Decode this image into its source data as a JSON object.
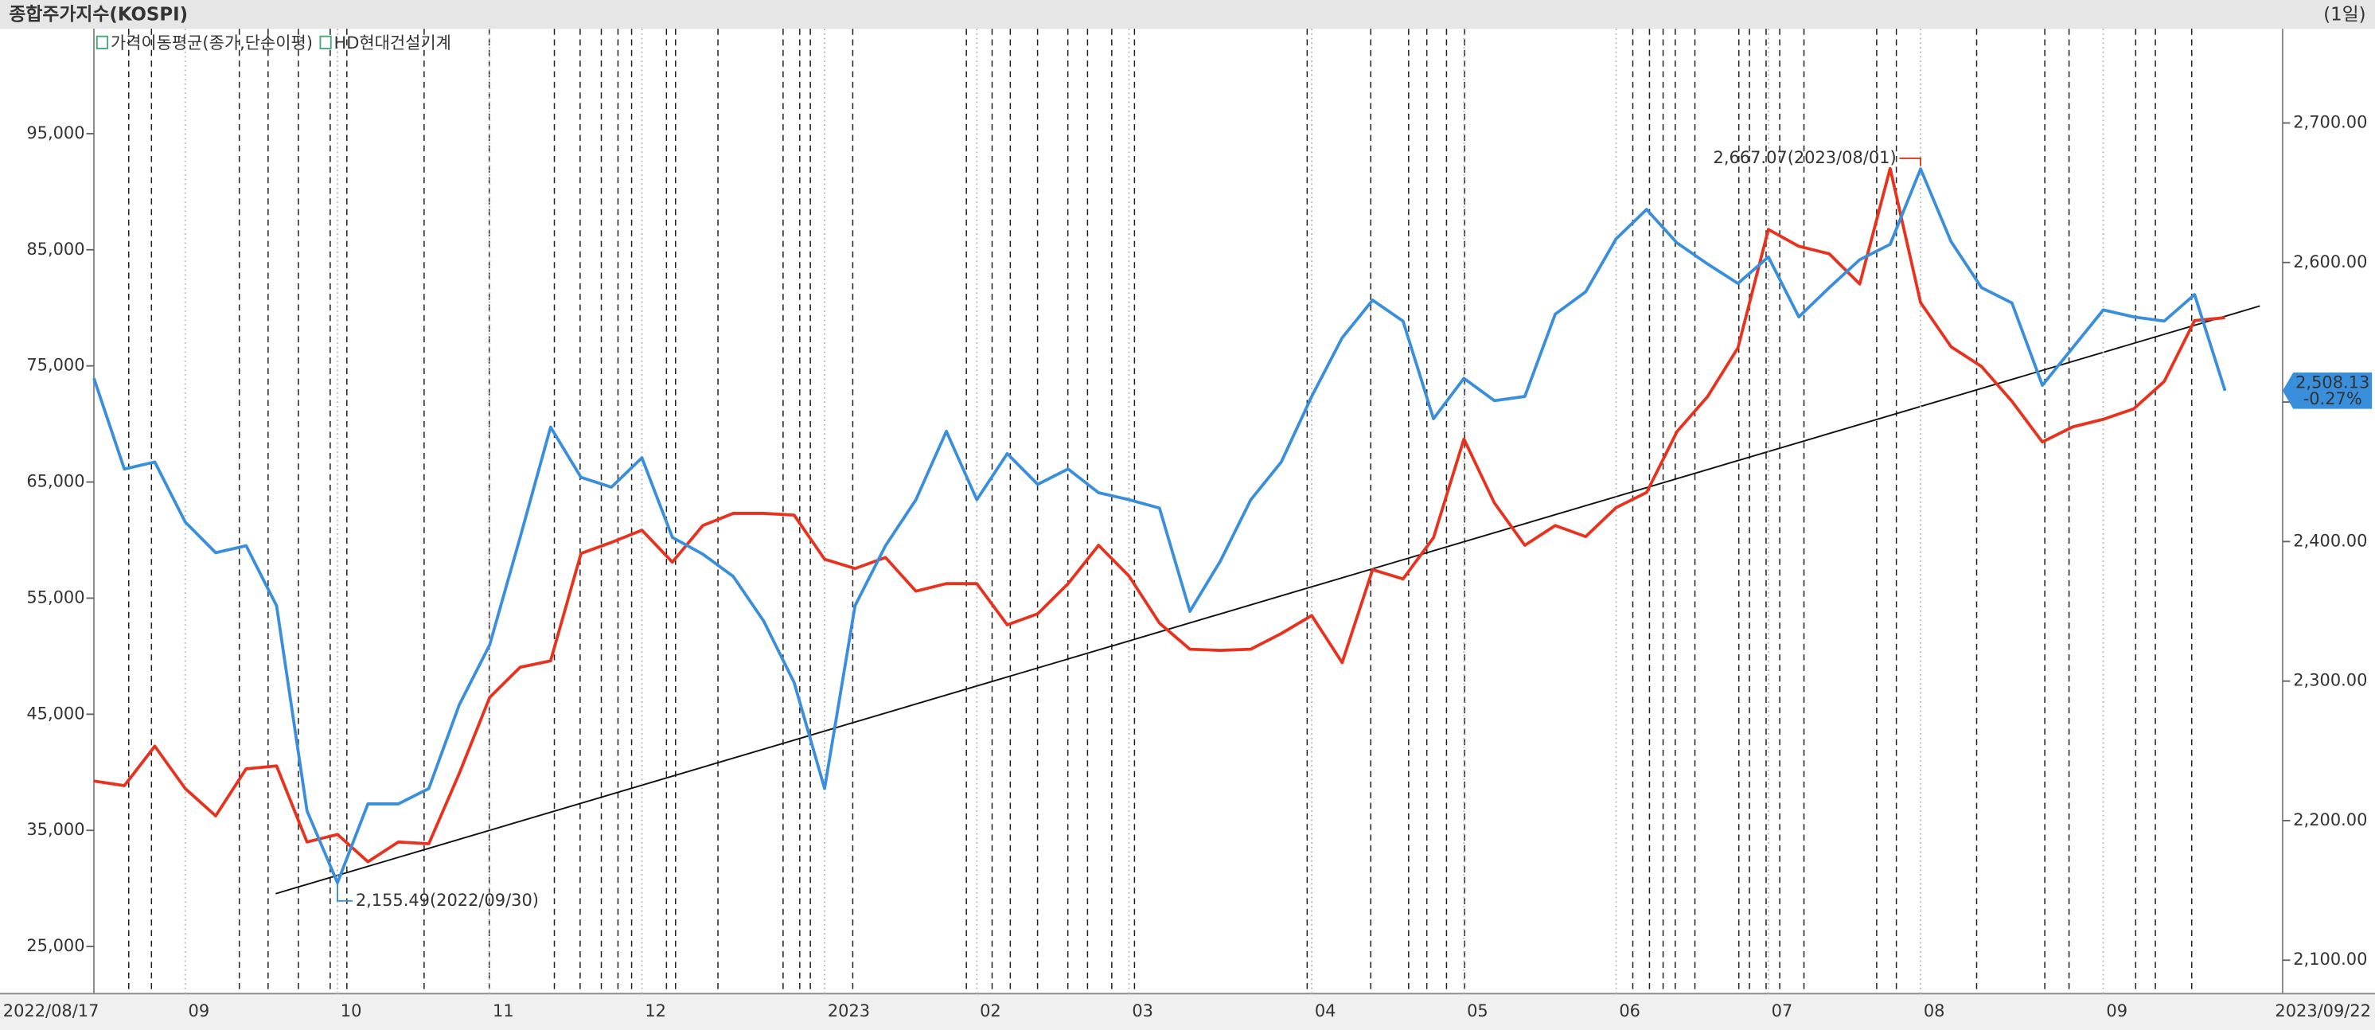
{
  "chart_data": {
    "type": "line",
    "title": "종합주가지수(KOSPI)",
    "period": "(1일)",
    "categories": [
      "2022/08/17",
      null,
      null,
      "09",
      null,
      null,
      null,
      null,
      "10",
      null,
      null,
      null,
      null,
      "11",
      null,
      null,
      null,
      null,
      "12",
      null,
      null,
      null,
      null,
      null,
      "2023",
      null,
      null,
      null,
      null,
      "02",
      null,
      null,
      null,
      null,
      "03",
      null,
      null,
      null,
      null,
      null,
      "04",
      null,
      null,
      null,
      null,
      "05",
      null,
      null,
      null,
      null,
      "06",
      null,
      null,
      null,
      null,
      "07",
      null,
      null,
      null,
      null,
      "08",
      null,
      null,
      null,
      null,
      null,
      "09",
      null,
      null,
      null,
      "2023/09/22"
    ],
    "series": [
      {
        "name": "가격이동평균(종가,단순이평)",
        "color": "#3a8fdc",
        "axis": "y2",
        "values": [
          2517,
          2452,
          2457,
          2414,
          2392,
          2397,
          2354,
          2207,
          2155.49,
          2212,
          2212,
          2223,
          2283,
          2326,
          2403,
          2482,
          2446,
          2439,
          2460,
          2403,
          2391,
          2375,
          2343,
          2299,
          2223,
          2354,
          2397,
          2430,
          2479,
          2430,
          2463,
          2441,
          2452,
          2435,
          2430,
          2424,
          2350,
          2386,
          2430,
          2457,
          2504,
          2546,
          2573,
          2558,
          2488,
          2517,
          2501,
          2504,
          2563,
          2579,
          2617,
          2638,
          2614,
          2599,
          2585,
          2604,
          2561,
          2582,
          2602,
          2613,
          2667.07,
          2615,
          2582,
          2571,
          2512,
          2539,
          2566,
          2561,
          2558,
          2577,
          2508.13
        ]
      },
      {
        "name": "HD현대건설기계",
        "color": "#e8321e",
        "values": [
          39250,
          38850,
          42250,
          38600,
          36250,
          40300,
          40550,
          34000,
          34650,
          32300,
          34000,
          33850,
          39900,
          46450,
          49050,
          49600,
          58850,
          59800,
          60850,
          58100,
          61250,
          62300,
          62300,
          62150,
          58350,
          57550,
          58500,
          55600,
          56250,
          56250,
          52700,
          53650,
          56250,
          59550,
          56900,
          52850,
          50600,
          50500,
          50600,
          51950,
          53500,
          49450,
          57450,
          56650,
          60200,
          68700,
          63200,
          59550,
          61250,
          60300,
          62800,
          64100,
          69350,
          72350,
          76550,
          86750,
          85300,
          84650,
          82050,
          92000,
          80450,
          76650,
          74950,
          71950,
          68450,
          69750,
          70400,
          71300,
          73650,
          78900,
          79150
        ]
      }
    ],
    "ylim": [
      20940,
      104030
    ],
    "yticks": [
      {
        "value": 25000,
        "label": "25,000"
      },
      {
        "value": 35000,
        "label": "35,000"
      },
      {
        "value": 45000,
        "label": "45,000"
      },
      {
        "value": 55000,
        "label": "55,000"
      },
      {
        "value": 65000,
        "label": "65,000"
      },
      {
        "value": 75000,
        "label": "75,000"
      },
      {
        "value": 85000,
        "label": "85,000"
      },
      {
        "value": 95000,
        "label": "95,000"
      }
    ],
    "y2lim": [
      2076,
      2767.5
    ],
    "y2ticks": [
      {
        "value": 2100,
        "label": "2,100.00"
      },
      {
        "value": 2200,
        "label": "2,200.00"
      },
      {
        "value": 2300,
        "label": "2,300.00"
      },
      {
        "value": 2400,
        "label": "2,400.00"
      },
      {
        "value": 2500,
        "label": "2,500.00"
      },
      {
        "value": 2600,
        "label": "2,600.00"
      },
      {
        "value": 2700,
        "label": "2,700.00"
      }
    ],
    "grid": false,
    "annotations": [
      "2,155.49(2022/09/30)",
      "2,667.07(2023/08/01)"
    ],
    "last_value_label": "2,508.13",
    "last_change_label": "-0.27%"
  }
}
